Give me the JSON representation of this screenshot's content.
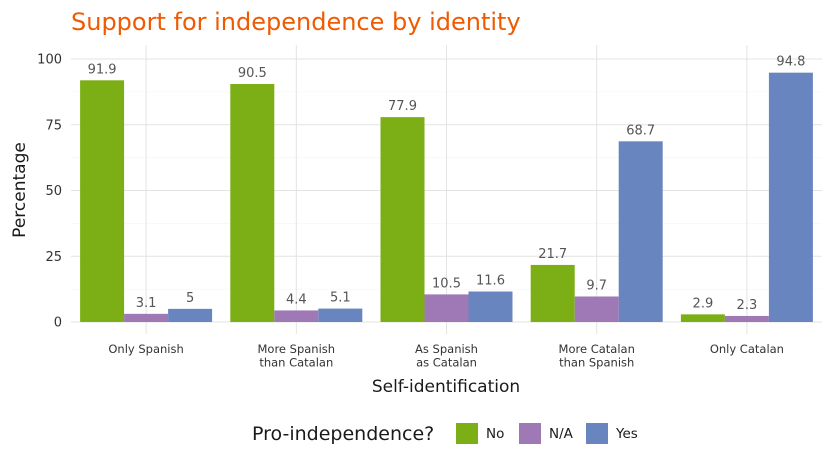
{
  "chart_data": {
    "type": "bar",
    "title": "Support for independence by identity",
    "xlabel": "Self-identification",
    "ylabel": "Percentage",
    "categories": [
      [
        "Only Spanish"
      ],
      [
        "More Spanish",
        "than Catalan"
      ],
      [
        "As Spanish",
        "as Catalan"
      ],
      [
        "More Catalan",
        "than Spanish"
      ],
      [
        "Only Catalan"
      ]
    ],
    "series": [
      {
        "name": "No",
        "color": "#7cae16",
        "values": [
          91.9,
          90.5,
          77.9,
          21.7,
          2.9
        ]
      },
      {
        "name": "N/A",
        "color": "#9e79b5",
        "values": [
          3.1,
          4.4,
          10.5,
          9.7,
          2.3
        ]
      },
      {
        "name": "Yes",
        "color": "#6885c0",
        "values": [
          5,
          5.1,
          11.6,
          68.7,
          94.8
        ]
      }
    ],
    "ylim": [
      0,
      105
    ],
    "yticks": [
      0,
      25,
      50,
      75,
      100
    ],
    "grid": true,
    "legend": {
      "title": "Pro-independence?",
      "position": "bottom"
    }
  }
}
